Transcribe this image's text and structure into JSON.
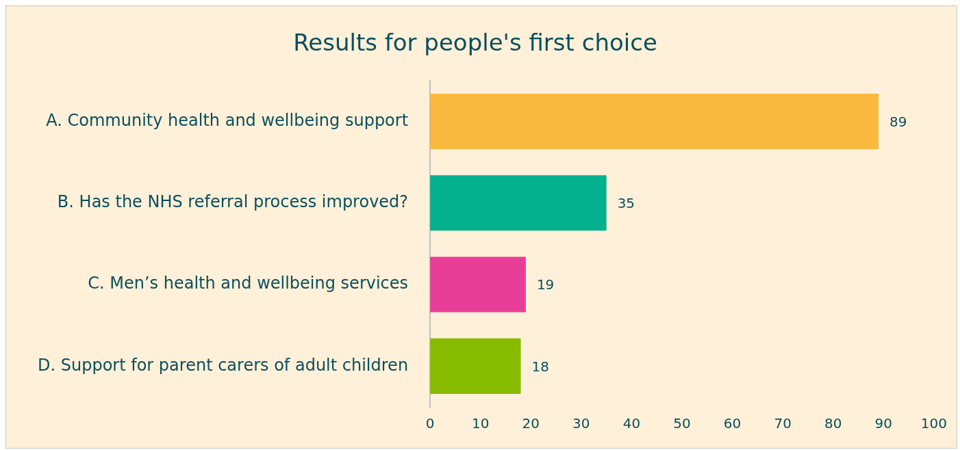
{
  "chart_data": {
    "type": "bar",
    "orientation": "horizontal",
    "title": "Results for people's first choice",
    "categories": [
      "A. Community health and wellbeing support",
      "B. Has the NHS referral process improved?",
      "C. Men’s health and wellbeing services",
      "D. Support for parent carers of adult children"
    ],
    "values": [
      89,
      35,
      19,
      18
    ],
    "colors": [
      "#f9b93f",
      "#04b18e",
      "#e83e97",
      "#86bb00"
    ],
    "xlim": [
      0,
      100
    ],
    "xticks": [
      0,
      10,
      20,
      30,
      40,
      50,
      60,
      70,
      80,
      90,
      100
    ],
    "grid": false,
    "legend": false,
    "data_labels": true
  }
}
